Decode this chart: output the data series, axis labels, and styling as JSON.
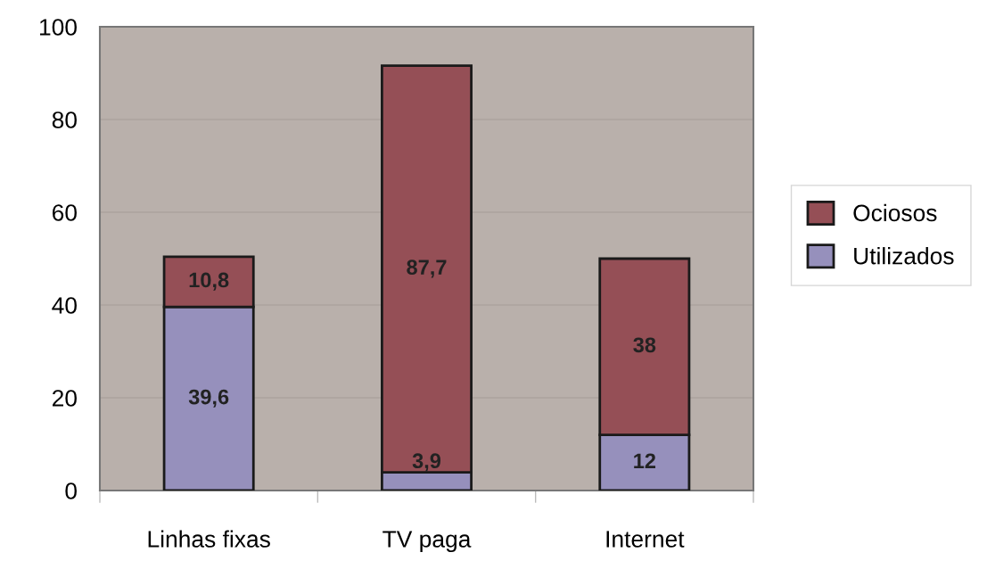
{
  "chart_data": {
    "type": "bar",
    "stacked": true,
    "categories": [
      "Linhas fixas",
      "TV paga",
      "Internet"
    ],
    "series": [
      {
        "name": "Utilizados",
        "color": "#9690bc",
        "values": [
          39.6,
          3.9,
          12
        ],
        "value_labels": [
          "39,6",
          "3,9",
          "12"
        ]
      },
      {
        "name": "Ociosos",
        "color": "#954f56",
        "values": [
          10.8,
          87.7,
          38
        ],
        "value_labels": [
          "10,8",
          "87,7",
          "38"
        ]
      }
    ],
    "ylim": [
      0,
      100
    ],
    "yticks": [
      0,
      20,
      40,
      60,
      80,
      100
    ],
    "grid": "y",
    "legend": "right"
  }
}
